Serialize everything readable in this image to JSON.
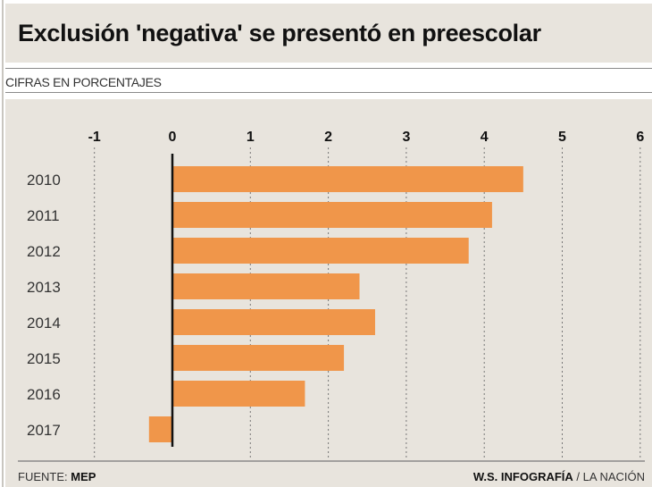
{
  "header": {
    "title": "Exclusión 'negativa' se presentó en preescolar",
    "subtitle": "CIFRAS EN PORCENTAJES"
  },
  "footer": {
    "source_label": "FUENTE:",
    "source": "MEP",
    "credit_bold": "W.S. INFOGRAFÍA",
    "credit_rest": "/ LA NACIÓN"
  },
  "chart_data": {
    "type": "bar",
    "orientation": "horizontal",
    "title": "Exclusión 'negativa' se presentó en preescolar",
    "subtitle": "CIFRAS EN PORCENTAJES",
    "categories": [
      "2010",
      "2011",
      "2012",
      "2013",
      "2014",
      "2015",
      "2016",
      "2017"
    ],
    "values": [
      4.5,
      4.1,
      3.8,
      2.4,
      2.6,
      2.2,
      1.7,
      -0.3
    ],
    "xlim": [
      -1,
      6
    ],
    "xticks": [
      "-1",
      "0",
      "1",
      "2",
      "3",
      "4",
      "5",
      "6"
    ],
    "tick_position": "top",
    "grid": "vertical dotted",
    "bar_color": "#f0964a",
    "zero_line_color": "#111111"
  }
}
